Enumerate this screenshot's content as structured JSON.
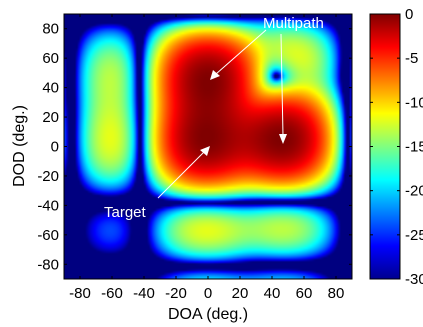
{
  "chart_data": {
    "type": "heatmap",
    "title": "",
    "xlabel": "DOA (deg.)",
    "ylabel": "DOD (deg.)",
    "xlim": [
      -90,
      90
    ],
    "ylim": [
      -90,
      90
    ],
    "xticks": [
      "-80",
      "-60",
      "-40",
      "-20",
      "0",
      "20",
      "40",
      "60",
      "80"
    ],
    "yticks": [
      "80",
      "60",
      "40",
      "20",
      "0",
      "-20",
      "-40",
      "-60",
      "-80"
    ],
    "colormap": "jet",
    "clim": [
      -30,
      0
    ],
    "colorbar_ticks": [
      "0",
      "-5",
      "-10",
      "-15",
      "-20",
      "-25",
      "-30"
    ],
    "peaks": [
      {
        "doa": 0,
        "dod": 5,
        "level_db": 0
      },
      {
        "doa": 0,
        "dod": 45,
        "level_db": 0
      },
      {
        "doa": 45,
        "dod": 5,
        "level_db": 0
      }
    ],
    "annotations": [
      {
        "text": "Multipath",
        "color": "#ffffff"
      },
      {
        "text": "Target",
        "color": "#ffffff"
      }
    ]
  }
}
